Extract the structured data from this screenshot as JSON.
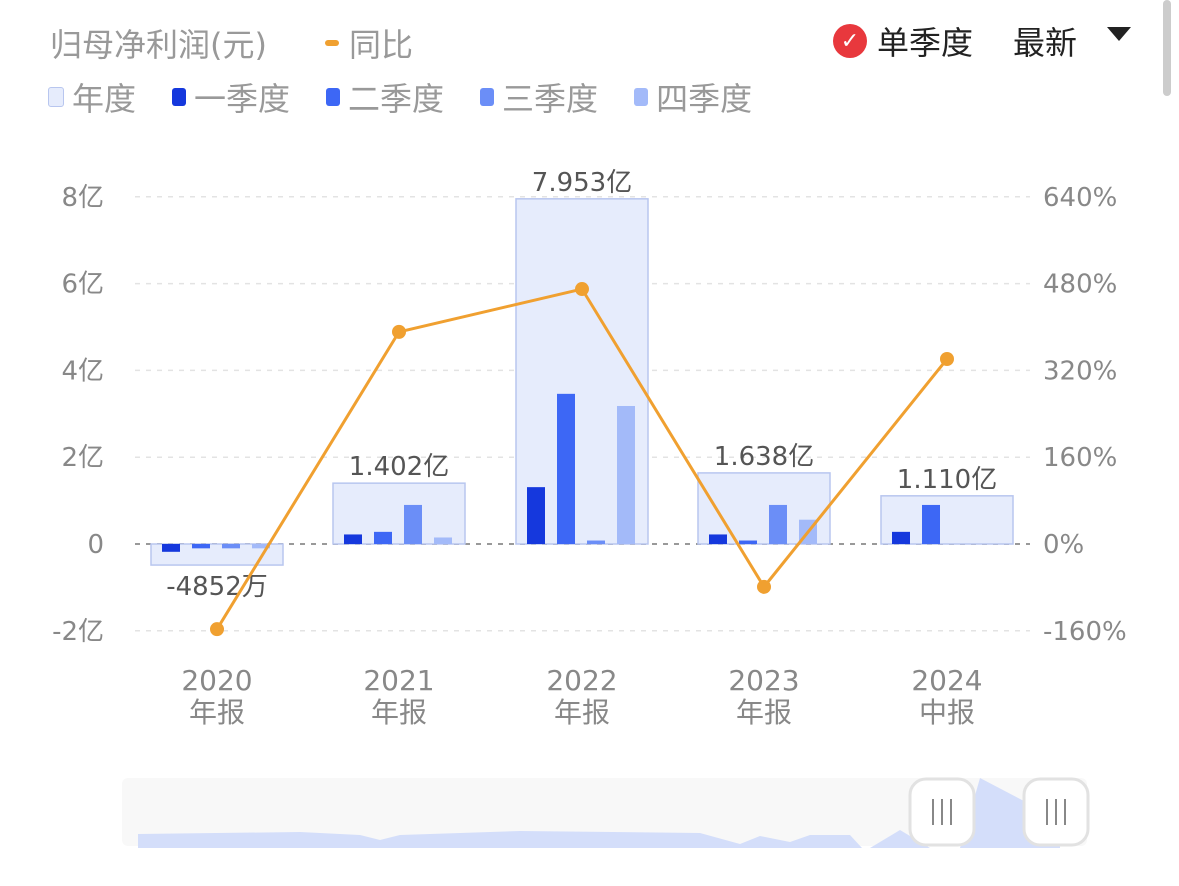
{
  "header": {
    "title": "归母净利润(元)",
    "yoy_legend": "同比",
    "single_quarter": "单季度",
    "latest": "最新"
  },
  "legend": [
    {
      "label": "年度",
      "color": "#e6ecfc"
    },
    {
      "label": "一季度",
      "color": "#1538dd"
    },
    {
      "label": "二季度",
      "color": "#3d67f5"
    },
    {
      "label": "三季度",
      "color": "#6b8ef7"
    },
    {
      "label": "四季度",
      "color": "#a3baf9"
    }
  ],
  "chart_data": {
    "type": "bar",
    "categories": [
      "2020\n年报",
      "2021\n年报",
      "2022\n年报",
      "2023\n年报",
      "2024\n中报"
    ],
    "category_lines": [
      [
        "2020",
        "年报"
      ],
      [
        "2021",
        "年报"
      ],
      [
        "2022",
        "年报"
      ],
      [
        "2023",
        "年报"
      ],
      [
        "2024",
        "中报"
      ]
    ],
    "annual": {
      "name": "年度",
      "values": [
        -0.4852,
        1.402,
        7.953,
        1.638,
        1.11
      ],
      "labels": [
        "-4852万",
        "1.402亿",
        "7.953亿",
        "1.638亿",
        "1.110亿"
      ]
    },
    "series": [
      {
        "name": "一季度",
        "values": [
          -0.18,
          0.22,
          1.31,
          0.22,
          0.28
        ]
      },
      {
        "name": "二季度",
        "values": [
          -0.1,
          0.28,
          3.46,
          0.08,
          0.9
        ]
      },
      {
        "name": "三季度",
        "values": [
          -0.1,
          0.9,
          0.08,
          0.9,
          null
        ]
      },
      {
        "name": "四季度",
        "values": [
          -0.1,
          0.15,
          3.18,
          0.56,
          null
        ]
      }
    ],
    "yoy": {
      "name": "同比",
      "values": [
        -157,
        391,
        470,
        -79,
        341
      ],
      "color": "#f0a030"
    },
    "y_left": {
      "ticks": [
        -2,
        0,
        2,
        4,
        6,
        8
      ],
      "tick_labels": [
        "-2亿",
        "0",
        "2亿",
        "4亿",
        "6亿",
        "8亿"
      ],
      "unit": "亿",
      "range": [
        -2,
        8
      ]
    },
    "y_right": {
      "ticks": [
        -160,
        0,
        160,
        320,
        480,
        640
      ],
      "tick_labels": [
        "-160%",
        "0%",
        "160%",
        "320%",
        "480%",
        "640%"
      ],
      "range": [
        -160,
        640
      ]
    },
    "grid": true
  }
}
